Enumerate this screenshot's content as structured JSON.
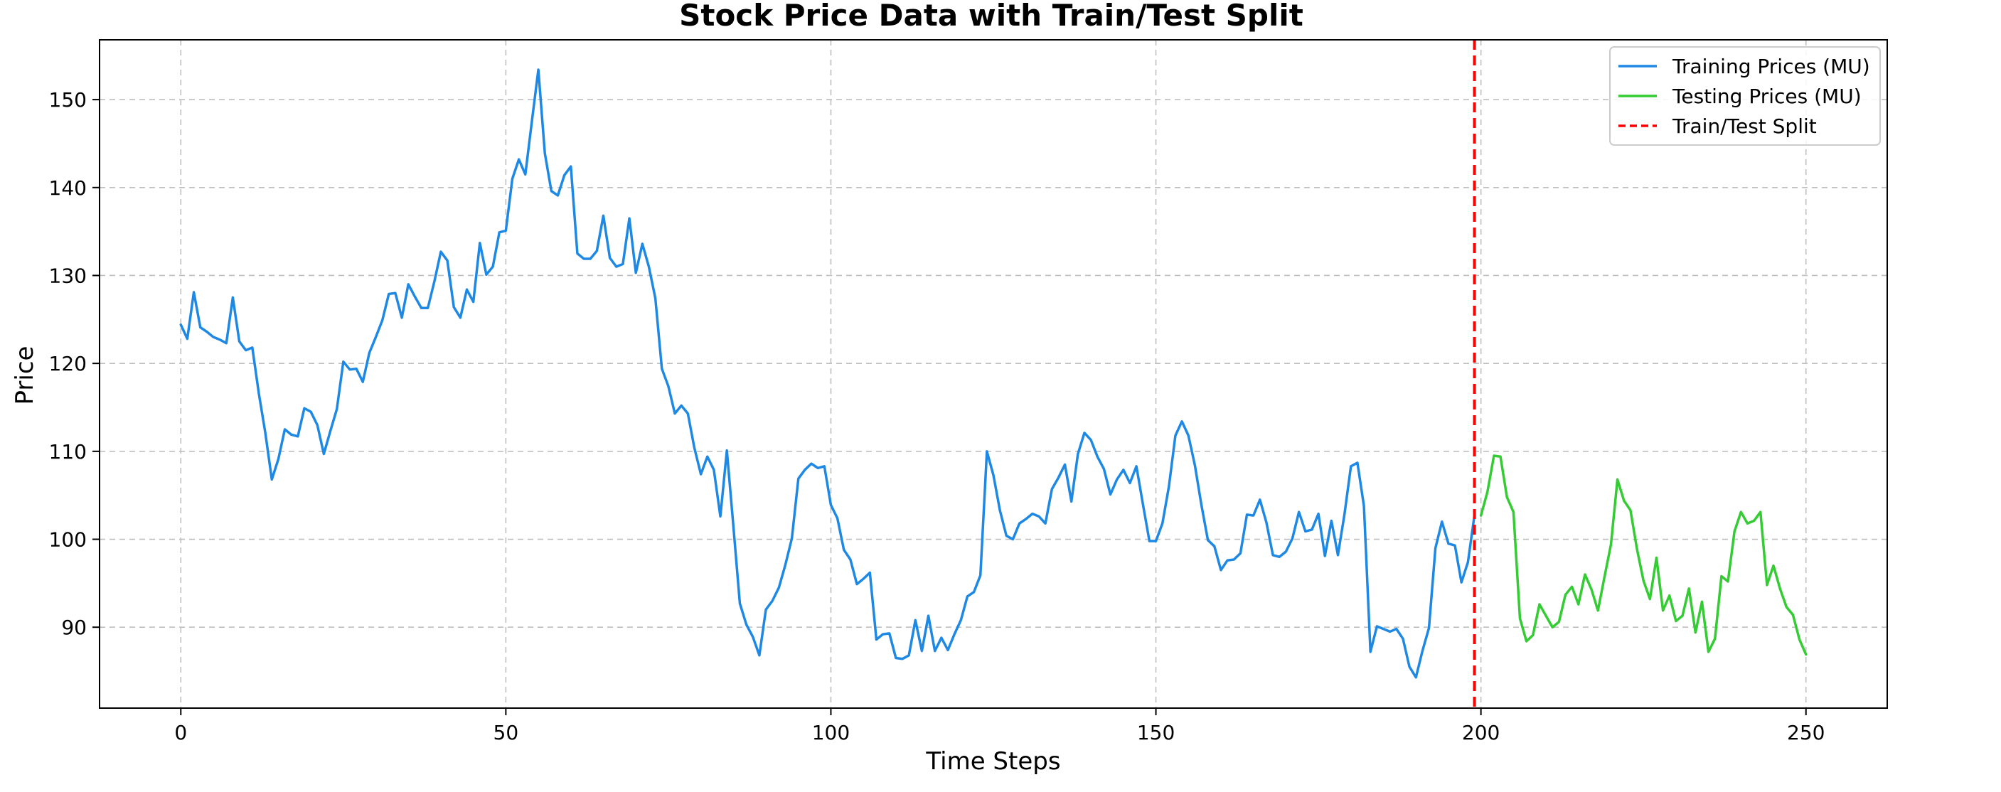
{
  "chart_data": {
    "type": "line",
    "title": "Stock Price Data with Train/Test Split",
    "xlabel": "Time Steps",
    "ylabel": "Price",
    "xlim": [
      -12.5,
      262.5
    ],
    "ylim": [
      80.8,
      156.8
    ],
    "xticks": [
      0,
      50,
      100,
      150,
      200,
      250
    ],
    "yticks": [
      90,
      100,
      110,
      120,
      130,
      140,
      150
    ],
    "grid": true,
    "legend_position": "top-right",
    "split": {
      "x": 199,
      "name": "Train/Test Split",
      "color": "#ff0000",
      "style": "dashed"
    },
    "series": [
      {
        "name": "Training Prices (MU)",
        "color": "#1e88e5",
        "x_start": 0,
        "values": [
          124.4,
          122.8,
          128.1,
          124.1,
          123.6,
          123.0,
          122.7,
          122.3,
          127.5,
          122.5,
          121.5,
          121.8,
          116.6,
          112.1,
          106.8,
          109.1,
          112.5,
          111.9,
          111.7,
          114.9,
          114.5,
          113.0,
          109.7,
          112.3,
          114.8,
          120.2,
          119.3,
          119.4,
          117.9,
          121.2,
          123.0,
          124.9,
          127.9,
          128.0,
          125.2,
          129.0,
          127.6,
          126.3,
          126.3,
          129.3,
          132.7,
          131.7,
          126.4,
          125.2,
          128.4,
          127.0,
          133.7,
          130.1,
          131.0,
          134.9,
          135.1,
          141.0,
          143.2,
          141.5,
          147.5,
          153.4,
          143.9,
          139.6,
          139.1,
          141.4,
          142.4,
          132.5,
          131.9,
          131.9,
          132.8,
          136.8,
          132.0,
          131.0,
          131.3,
          136.5,
          130.3,
          133.6,
          131.0,
          127.4,
          119.4,
          117.4,
          114.3,
          115.2,
          114.3,
          110.4,
          107.4,
          109.4,
          107.9,
          102.6,
          110.1,
          101.5,
          92.7,
          90.3,
          88.9,
          86.8,
          92.0,
          93.0,
          94.5,
          97.1,
          100.1,
          106.9,
          107.9,
          108.6,
          108.1,
          108.3,
          103.9,
          102.4,
          98.8,
          97.7,
          94.9,
          95.5,
          96.2,
          88.6,
          89.2,
          89.3,
          86.5,
          86.4,
          86.8,
          90.8,
          87.3,
          91.3,
          87.3,
          88.8,
          87.4,
          89.2,
          90.8,
          93.5,
          94.0,
          95.9,
          110.0,
          107.3,
          103.3,
          100.4,
          100.0,
          101.8,
          102.3,
          102.9,
          102.6,
          101.8,
          105.7,
          107.0,
          108.5,
          104.3,
          109.7,
          112.1,
          111.3,
          109.4,
          108.0,
          105.1,
          106.8,
          107.9,
          106.4,
          108.3,
          104.0,
          99.8,
          99.8,
          101.8,
          106.0,
          111.8,
          113.4,
          111.8,
          108.4,
          103.9,
          99.9,
          99.2,
          96.5,
          97.6,
          97.7,
          98.4,
          102.8,
          102.7,
          104.5,
          101.9,
          98.2,
          98.0,
          98.6,
          100.1,
          103.1,
          100.9,
          101.1,
          102.9,
          98.1,
          102.1,
          98.2,
          102.8,
          108.3,
          108.7,
          103.8,
          87.2,
          90.1,
          89.8,
          89.5,
          89.8,
          88.7,
          85.5,
          84.3,
          87.3,
          89.9,
          99.0,
          102.0,
          99.5,
          99.3,
          95.1,
          97.4,
          102.7
        ]
      },
      {
        "name": "Testing Prices (MU)",
        "color": "#33cc33",
        "x_start": 200,
        "values": [
          102.7,
          105.4,
          109.5,
          109.4,
          104.8,
          103.1,
          91.0,
          88.4,
          89.1,
          92.6,
          91.3,
          90.0,
          90.6,
          93.7,
          94.6,
          92.6,
          96.0,
          94.3,
          91.9,
          95.7,
          99.4,
          106.8,
          104.4,
          103.3,
          98.9,
          95.3,
          93.2,
          97.9,
          91.9,
          93.6,
          90.7,
          91.3,
          94.4,
          89.4,
          92.9,
          87.2,
          88.7,
          95.8,
          95.2,
          100.9,
          103.1,
          101.8,
          102.1,
          103.1,
          94.8,
          97.0,
          94.4,
          92.3,
          91.4,
          88.6,
          86.9
        ]
      }
    ]
  }
}
